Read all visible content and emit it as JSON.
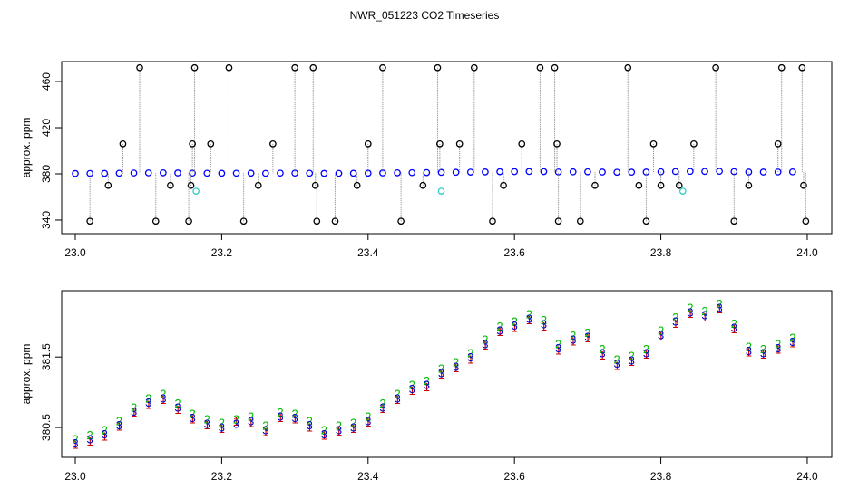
{
  "chart_data": [
    {
      "type": "scatter",
      "title": "NWR_051223  CO2 Timeseries",
      "ylabel": "approx. ppm",
      "xlim": [
        22.9814,
        24.0335
      ],
      "ylim": [
        328.2,
        477.3
      ],
      "xticks": [
        {
          "value": 23,
          "label": "23.0"
        },
        {
          "value": 23.2,
          "label": "23.2"
        },
        {
          "value": 23.4,
          "label": "23.4"
        },
        {
          "value": 23.6,
          "label": "23.6"
        },
        {
          "value": 23.8,
          "label": "23.8"
        },
        {
          "value": 24,
          "label": "24.0"
        }
      ],
      "yticks": [
        340,
        380,
        420,
        460
      ],
      "series": [
        {
          "color": "#0000ff",
          "marker": "circle",
          "x": [
            23.0,
            23.02,
            23.04,
            23.06,
            23.08,
            23.1,
            23.12,
            23.14,
            23.16,
            23.18,
            23.2,
            23.22,
            23.24,
            23.26,
            23.28,
            23.3,
            23.32,
            23.34,
            23.36,
            23.38,
            23.4,
            23.42,
            23.44,
            23.46,
            23.48,
            23.5,
            23.52,
            23.54,
            23.56,
            23.58,
            23.6,
            23.62,
            23.64,
            23.66,
            23.68,
            23.7,
            23.72,
            23.74,
            23.76,
            23.78,
            23.8,
            23.82,
            23.84,
            23.86,
            23.88,
            23.9,
            23.92,
            23.94,
            23.96,
            23.98
          ],
          "values": [
            380.26,
            380.32,
            380.39,
            380.52,
            380.71,
            380.84,
            380.9,
            380.77,
            380.62,
            380.54,
            380.49,
            380.54,
            380.58,
            380.45,
            380.64,
            380.62,
            380.52,
            380.39,
            380.45,
            380.49,
            380.58,
            380.77,
            380.9,
            381.03,
            381.09,
            381.26,
            381.35,
            381.48,
            381.67,
            381.86,
            381.93,
            382.03,
            381.95,
            381.61,
            381.73,
            381.77,
            381.54,
            381.39,
            381.44,
            381.54,
            381.8,
            381.99,
            382.12,
            382.08,
            382.18,
            381.9,
            381.57,
            381.54,
            381.61,
            381.7
          ]
        },
        {
          "color": "#000000",
          "marker": "circle",
          "drop_lines": true,
          "x": [
            23.088,
            23.163,
            23.21,
            23.3,
            23.325,
            23.42,
            23.495,
            23.545,
            23.635,
            23.655,
            23.755,
            23.875,
            23.965,
            23.993,
            23.065,
            23.16,
            23.185,
            23.27,
            23.4,
            23.498,
            23.525,
            23.61,
            23.658,
            23.79,
            23.845,
            23.96,
            23.045,
            23.13,
            23.158,
            23.25,
            23.328,
            23.385,
            23.475,
            23.585,
            23.71,
            23.77,
            23.8,
            23.825,
            23.92,
            23.995,
            23.02,
            23.11,
            23.155,
            23.23,
            23.33,
            23.355,
            23.445,
            23.57,
            23.66,
            23.69,
            23.78,
            23.9,
            23.998
          ],
          "values": [
            472,
            472,
            472,
            472,
            472,
            472,
            472,
            472,
            472,
            472,
            472,
            472,
            472,
            472,
            406,
            406,
            406,
            406,
            406,
            406,
            406,
            406,
            406,
            406,
            406,
            406,
            370,
            370,
            370,
            370,
            370,
            370,
            370,
            370,
            370,
            370,
            370,
            370,
            370,
            370,
            339,
            339,
            339,
            339,
            339,
            339,
            339,
            339,
            339,
            339,
            339,
            339,
            339
          ]
        },
        {
          "color": "#33cccc",
          "marker": "circle",
          "x": [
            23.165,
            23.5,
            23.83
          ],
          "values": [
            365,
            365,
            365
          ]
        }
      ]
    },
    {
      "type": "scatter",
      "ylabel": "approx. ppm",
      "xlim": [
        22.9814,
        24.0335
      ],
      "ylim": [
        380.077,
        382.44
      ],
      "xticks": [
        {
          "value": 23,
          "label": "23.0"
        },
        {
          "value": 23.2,
          "label": "23.2"
        },
        {
          "value": 23.4,
          "label": "23.4"
        },
        {
          "value": 23.6,
          "label": "23.6"
        },
        {
          "value": 23.8,
          "label": "23.8"
        },
        {
          "value": 24,
          "label": "24.0"
        }
      ],
      "yticks": [
        380.5,
        381.5
      ],
      "x": [
        23.0,
        23.02,
        23.04,
        23.06,
        23.08,
        23.1,
        23.12,
        23.14,
        23.16,
        23.18,
        23.2,
        23.22,
        23.24,
        23.26,
        23.28,
        23.3,
        23.32,
        23.34,
        23.36,
        23.38,
        23.4,
        23.42,
        23.44,
        23.46,
        23.48,
        23.5,
        23.52,
        23.54,
        23.56,
        23.58,
        23.6,
        23.62,
        23.64,
        23.66,
        23.68,
        23.7,
        23.72,
        23.74,
        23.76,
        23.78,
        23.8,
        23.82,
        23.84,
        23.86,
        23.88,
        23.9,
        23.92,
        23.94,
        23.96,
        23.98
      ],
      "series": [
        {
          "color": "#cc0000",
          "marker": "1",
          "values": [
            380.24,
            380.29,
            380.36,
            380.5,
            380.7,
            380.81,
            380.88,
            380.74,
            380.6,
            380.52,
            380.47,
            380.57,
            380.55,
            380.42,
            380.62,
            380.6,
            380.49,
            380.37,
            380.43,
            380.47,
            380.56,
            380.75,
            380.88,
            381.01,
            381.06,
            381.24,
            381.33,
            381.45,
            381.65,
            381.84,
            381.9,
            382.01,
            381.92,
            381.58,
            381.71,
            381.75,
            381.51,
            381.36,
            381.42,
            381.52,
            381.78,
            381.96,
            382.1,
            382.05,
            382.16,
            381.88,
            381.55,
            381.52,
            381.59,
            381.68
          ]
        },
        {
          "color": "#00bb00",
          "marker": "2",
          "values": [
            380.32,
            380.38,
            380.45,
            380.58,
            380.77,
            380.9,
            380.96,
            380.83,
            380.68,
            380.6,
            380.55,
            380.6,
            380.64,
            380.51,
            380.7,
            380.68,
            380.58,
            380.45,
            380.51,
            380.55,
            380.64,
            380.83,
            380.96,
            381.09,
            381.15,
            381.32,
            381.41,
            381.54,
            381.73,
            381.92,
            381.99,
            382.09,
            382.01,
            381.67,
            381.79,
            381.83,
            381.6,
            381.45,
            381.5,
            381.6,
            381.86,
            382.05,
            382.18,
            382.14,
            382.24,
            381.96,
            381.63,
            381.6,
            381.67,
            381.76
          ]
        },
        {
          "color": "#0000cc",
          "marker": "3",
          "values": [
            380.26,
            380.32,
            380.39,
            380.52,
            380.71,
            380.84,
            380.9,
            380.77,
            380.62,
            380.54,
            380.49,
            380.54,
            380.58,
            380.45,
            380.64,
            380.62,
            380.52,
            380.39,
            380.45,
            380.49,
            380.58,
            380.77,
            380.9,
            381.03,
            381.09,
            381.26,
            381.35,
            381.48,
            381.67,
            381.86,
            381.93,
            382.03,
            381.95,
            381.61,
            381.73,
            381.77,
            381.54,
            381.39,
            381.44,
            381.54,
            381.8,
            381.99,
            382.12,
            382.08,
            382.18,
            381.9,
            381.57,
            381.54,
            381.61,
            381.7
          ]
        }
      ]
    }
  ]
}
